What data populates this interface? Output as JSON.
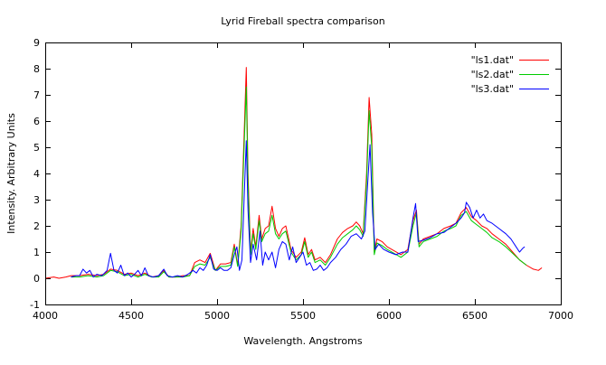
{
  "chart_data": {
    "type": "line",
    "title": "Lyrid Fireball spectra comparison",
    "xlabel": "Wavelength. Angstroms",
    "ylabel": "Intensity. Arbitrary Units",
    "xlim": [
      4000,
      7000
    ],
    "ylim": [
      -1,
      9
    ],
    "xticks": [
      "4000",
      "4500",
      "5000",
      "5500",
      "6000",
      "6500",
      "7000"
    ],
    "yticks": [
      "-1",
      "0",
      "1",
      "2",
      "3",
      "4",
      "5",
      "6",
      "7",
      "8",
      "9"
    ],
    "legend": "top-right",
    "grid": false,
    "series": [
      {
        "name": "\"ls1.dat\"",
        "color": "#ff0000",
        "points": [
          [
            4000,
            0.0
          ],
          [
            4050,
            0.05
          ],
          [
            4080,
            0.0
          ],
          [
            4120,
            0.05
          ],
          [
            4150,
            0.1
          ],
          [
            4200,
            0.1
          ],
          [
            4250,
            0.15
          ],
          [
            4300,
            0.1
          ],
          [
            4340,
            0.15
          ],
          [
            4380,
            0.35
          ],
          [
            4420,
            0.3
          ],
          [
            4460,
            0.15
          ],
          [
            4500,
            0.2
          ],
          [
            4540,
            0.1
          ],
          [
            4580,
            0.2
          ],
          [
            4620,
            0.05
          ],
          [
            4660,
            0.1
          ],
          [
            4690,
            0.3
          ],
          [
            4720,
            0.05
          ],
          [
            4760,
            0.05
          ],
          [
            4800,
            0.1
          ],
          [
            4840,
            0.1
          ],
          [
            4870,
            0.6
          ],
          [
            4900,
            0.7
          ],
          [
            4930,
            0.6
          ],
          [
            4960,
            0.95
          ],
          [
            4990,
            0.3
          ],
          [
            5020,
            0.55
          ],
          [
            5050,
            0.55
          ],
          [
            5080,
            0.6
          ],
          [
            5100,
            1.3
          ],
          [
            5120,
            0.5
          ],
          [
            5140,
            2.0
          ],
          [
            5160,
            6.0
          ],
          [
            5170,
            8.05
          ],
          [
            5180,
            4.0
          ],
          [
            5195,
            1.0
          ],
          [
            5210,
            1.9
          ],
          [
            5225,
            1.2
          ],
          [
            5245,
            2.4
          ],
          [
            5260,
            1.5
          ],
          [
            5280,
            1.9
          ],
          [
            5300,
            2.0
          ],
          [
            5320,
            2.75
          ],
          [
            5340,
            1.9
          ],
          [
            5360,
            1.6
          ],
          [
            5380,
            1.9
          ],
          [
            5400,
            2.0
          ],
          [
            5430,
            1.1
          ],
          [
            5460,
            0.8
          ],
          [
            5490,
            1.0
          ],
          [
            5510,
            1.55
          ],
          [
            5530,
            0.9
          ],
          [
            5550,
            1.1
          ],
          [
            5570,
            0.7
          ],
          [
            5600,
            0.8
          ],
          [
            5630,
            0.6
          ],
          [
            5660,
            0.9
          ],
          [
            5700,
            1.5
          ],
          [
            5730,
            1.75
          ],
          [
            5760,
            1.9
          ],
          [
            5790,
            2.0
          ],
          [
            5810,
            2.15
          ],
          [
            5830,
            2.0
          ],
          [
            5850,
            1.7
          ],
          [
            5870,
            4.0
          ],
          [
            5885,
            6.9
          ],
          [
            5900,
            5.5
          ],
          [
            5915,
            1.0
          ],
          [
            5930,
            1.5
          ],
          [
            5960,
            1.4
          ],
          [
            5990,
            1.2
          ],
          [
            6030,
            1.05
          ],
          [
            6070,
            0.9
          ],
          [
            6110,
            1.1
          ],
          [
            6140,
            2.2
          ],
          [
            6160,
            2.6
          ],
          [
            6175,
            1.3
          ],
          [
            6200,
            1.5
          ],
          [
            6240,
            1.6
          ],
          [
            6280,
            1.7
          ],
          [
            6320,
            1.9
          ],
          [
            6360,
            2.0
          ],
          [
            6390,
            2.1
          ],
          [
            6420,
            2.5
          ],
          [
            6450,
            2.7
          ],
          [
            6480,
            2.35
          ],
          [
            6510,
            2.2
          ],
          [
            6540,
            2.0
          ],
          [
            6570,
            1.9
          ],
          [
            6600,
            1.7
          ],
          [
            6640,
            1.5
          ],
          [
            6680,
            1.3
          ],
          [
            6720,
            1.0
          ],
          [
            6760,
            0.7
          ],
          [
            6800,
            0.5
          ],
          [
            6840,
            0.35
          ],
          [
            6870,
            0.3
          ],
          [
            6890,
            0.4
          ]
        ]
      },
      {
        "name": "\"ls2.dat\"",
        "color": "#00cc00",
        "points": [
          [
            4150,
            0.05
          ],
          [
            4200,
            0.05
          ],
          [
            4250,
            0.1
          ],
          [
            4300,
            0.05
          ],
          [
            4340,
            0.1
          ],
          [
            4380,
            0.3
          ],
          [
            4420,
            0.25
          ],
          [
            4460,
            0.1
          ],
          [
            4500,
            0.15
          ],
          [
            4540,
            0.05
          ],
          [
            4580,
            0.15
          ],
          [
            4620,
            0.05
          ],
          [
            4660,
            0.05
          ],
          [
            4690,
            0.25
          ],
          [
            4720,
            0.05
          ],
          [
            4760,
            0.05
          ],
          [
            4800,
            0.05
          ],
          [
            4840,
            0.1
          ],
          [
            4870,
            0.45
          ],
          [
            4900,
            0.55
          ],
          [
            4930,
            0.5
          ],
          [
            4960,
            0.8
          ],
          [
            4990,
            0.3
          ],
          [
            5020,
            0.45
          ],
          [
            5050,
            0.45
          ],
          [
            5080,
            0.5
          ],
          [
            5100,
            1.2
          ],
          [
            5120,
            0.45
          ],
          [
            5140,
            1.8
          ],
          [
            5160,
            5.5
          ],
          [
            5170,
            7.3
          ],
          [
            5180,
            3.6
          ],
          [
            5195,
            0.9
          ],
          [
            5210,
            1.7
          ],
          [
            5225,
            1.1
          ],
          [
            5245,
            2.2
          ],
          [
            5260,
            1.4
          ],
          [
            5280,
            1.7
          ],
          [
            5300,
            1.8
          ],
          [
            5320,
            2.4
          ],
          [
            5340,
            1.7
          ],
          [
            5360,
            1.5
          ],
          [
            5380,
            1.7
          ],
          [
            5400,
            1.8
          ],
          [
            5430,
            1.0
          ],
          [
            5460,
            0.7
          ],
          [
            5490,
            0.9
          ],
          [
            5510,
            1.4
          ],
          [
            5530,
            0.8
          ],
          [
            5550,
            1.0
          ],
          [
            5570,
            0.6
          ],
          [
            5600,
            0.7
          ],
          [
            5630,
            0.5
          ],
          [
            5660,
            0.8
          ],
          [
            5700,
            1.3
          ],
          [
            5730,
            1.55
          ],
          [
            5760,
            1.7
          ],
          [
            5790,
            1.85
          ],
          [
            5810,
            2.0
          ],
          [
            5830,
            1.85
          ],
          [
            5850,
            1.6
          ],
          [
            5870,
            3.7
          ],
          [
            5885,
            6.4
          ],
          [
            5900,
            5.0
          ],
          [
            5915,
            0.9
          ],
          [
            5930,
            1.35
          ],
          [
            5960,
            1.25
          ],
          [
            5990,
            1.1
          ],
          [
            6030,
            0.95
          ],
          [
            6070,
            0.8
          ],
          [
            6110,
            1.0
          ],
          [
            6140,
            2.0
          ],
          [
            6160,
            2.5
          ],
          [
            6175,
            1.2
          ],
          [
            6200,
            1.4
          ],
          [
            6240,
            1.5
          ],
          [
            6280,
            1.6
          ],
          [
            6320,
            1.8
          ],
          [
            6360,
            1.9
          ],
          [
            6390,
            2.0
          ],
          [
            6420,
            2.4
          ],
          [
            6450,
            2.55
          ],
          [
            6480,
            2.2
          ],
          [
            6510,
            2.05
          ],
          [
            6540,
            1.9
          ],
          [
            6570,
            1.75
          ],
          [
            6600,
            1.55
          ],
          [
            6640,
            1.4
          ],
          [
            6680,
            1.2
          ],
          [
            6720,
            0.95
          ],
          [
            6760,
            0.7
          ],
          [
            6800,
            0.5
          ]
        ]
      },
      {
        "name": "\"ls3.dat\"",
        "color": "#0000ff",
        "points": [
          [
            4150,
            0.05
          ],
          [
            4180,
            0.1
          ],
          [
            4200,
            0.1
          ],
          [
            4220,
            0.35
          ],
          [
            4240,
            0.2
          ],
          [
            4260,
            0.3
          ],
          [
            4280,
            0.05
          ],
          [
            4300,
            0.15
          ],
          [
            4330,
            0.1
          ],
          [
            4360,
            0.3
          ],
          [
            4380,
            0.95
          ],
          [
            4400,
            0.3
          ],
          [
            4420,
            0.2
          ],
          [
            4440,
            0.5
          ],
          [
            4460,
            0.1
          ],
          [
            4480,
            0.2
          ],
          [
            4500,
            0.05
          ],
          [
            4520,
            0.15
          ],
          [
            4540,
            0.3
          ],
          [
            4560,
            0.1
          ],
          [
            4580,
            0.4
          ],
          [
            4600,
            0.1
          ],
          [
            4630,
            0.05
          ],
          [
            4660,
            0.1
          ],
          [
            4690,
            0.35
          ],
          [
            4710,
            0.1
          ],
          [
            4740,
            0.05
          ],
          [
            4770,
            0.1
          ],
          [
            4800,
            0.05
          ],
          [
            4830,
            0.15
          ],
          [
            4860,
            0.3
          ],
          [
            4880,
            0.2
          ],
          [
            4900,
            0.4
          ],
          [
            4920,
            0.3
          ],
          [
            4940,
            0.5
          ],
          [
            4960,
            0.9
          ],
          [
            4980,
            0.35
          ],
          [
            5000,
            0.3
          ],
          [
            5020,
            0.4
          ],
          [
            5040,
            0.3
          ],
          [
            5060,
            0.3
          ],
          [
            5080,
            0.4
          ],
          [
            5100,
            0.9
          ],
          [
            5115,
            1.2
          ],
          [
            5130,
            0.3
          ],
          [
            5145,
            0.7
          ],
          [
            5160,
            3.5
          ],
          [
            5170,
            5.25
          ],
          [
            5180,
            2.6
          ],
          [
            5195,
            0.6
          ],
          [
            5210,
            1.3
          ],
          [
            5230,
            0.7
          ],
          [
            5250,
            1.8
          ],
          [
            5265,
            0.5
          ],
          [
            5280,
            1.0
          ],
          [
            5300,
            0.7
          ],
          [
            5320,
            1.0
          ],
          [
            5340,
            0.4
          ],
          [
            5360,
            1.1
          ],
          [
            5380,
            1.4
          ],
          [
            5400,
            1.3
          ],
          [
            5420,
            0.7
          ],
          [
            5440,
            1.2
          ],
          [
            5460,
            0.6
          ],
          [
            5480,
            0.8
          ],
          [
            5500,
            1.0
          ],
          [
            5520,
            0.5
          ],
          [
            5540,
            0.6
          ],
          [
            5560,
            0.3
          ],
          [
            5580,
            0.35
          ],
          [
            5600,
            0.5
          ],
          [
            5620,
            0.3
          ],
          [
            5640,
            0.4
          ],
          [
            5660,
            0.6
          ],
          [
            5690,
            0.8
          ],
          [
            5720,
            1.1
          ],
          [
            5750,
            1.3
          ],
          [
            5780,
            1.6
          ],
          [
            5810,
            1.7
          ],
          [
            5840,
            1.5
          ],
          [
            5860,
            1.8
          ],
          [
            5875,
            3.5
          ],
          [
            5890,
            5.1
          ],
          [
            5905,
            2.5
          ],
          [
            5920,
            1.1
          ],
          [
            5940,
            1.3
          ],
          [
            5970,
            1.1
          ],
          [
            6000,
            1.0
          ],
          [
            6040,
            0.9
          ],
          [
            6080,
            1.0
          ],
          [
            6110,
            1.0
          ],
          [
            6140,
            2.3
          ],
          [
            6155,
            2.85
          ],
          [
            6170,
            1.4
          ],
          [
            6200,
            1.45
          ],
          [
            6240,
            1.55
          ],
          [
            6280,
            1.7
          ],
          [
            6320,
            1.75
          ],
          [
            6360,
            1.95
          ],
          [
            6390,
            2.1
          ],
          [
            6420,
            2.3
          ],
          [
            6440,
            2.5
          ],
          [
            6450,
            2.9
          ],
          [
            6470,
            2.7
          ],
          [
            6490,
            2.3
          ],
          [
            6510,
            2.6
          ],
          [
            6530,
            2.3
          ],
          [
            6550,
            2.45
          ],
          [
            6570,
            2.2
          ],
          [
            6600,
            2.1
          ],
          [
            6640,
            1.9
          ],
          [
            6680,
            1.7
          ],
          [
            6710,
            1.5
          ],
          [
            6740,
            1.2
          ],
          [
            6760,
            1.0
          ],
          [
            6780,
            1.15
          ],
          [
            6790,
            1.2
          ]
        ]
      }
    ]
  }
}
